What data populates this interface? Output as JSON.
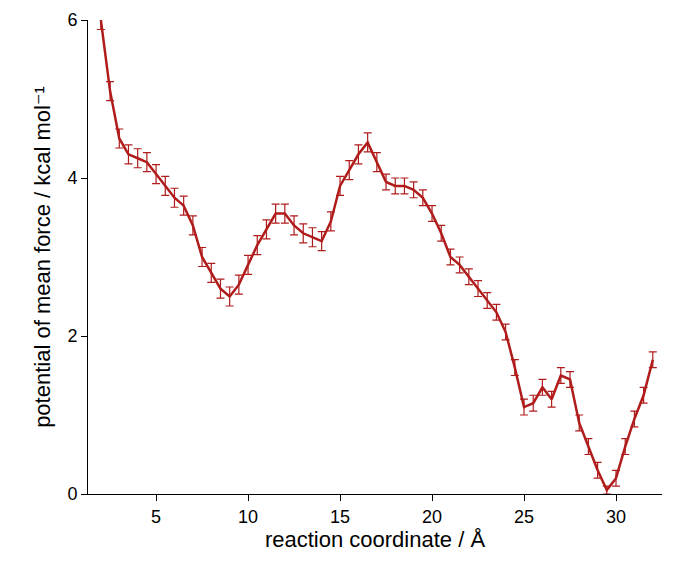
{
  "chart_data": {
    "type": "line",
    "x_label": "reaction coordinate / Å",
    "y_label": "potential of mean force / kcal mol⁻¹",
    "color": "#b01c1c",
    "grid": false,
    "xlim": [
      1.3,
      32.5
    ],
    "xticks": [
      5,
      10,
      15,
      20,
      25,
      30
    ],
    "ylim": [
      0,
      6
    ],
    "yticks": [
      0,
      2,
      4,
      6
    ],
    "x": [
      2.0,
      2.5,
      3.0,
      3.5,
      4.0,
      4.5,
      5.0,
      5.5,
      6.0,
      6.5,
      7.0,
      7.5,
      8.0,
      8.5,
      9.0,
      9.5,
      10.0,
      10.5,
      11.0,
      11.5,
      12.0,
      12.5,
      13.0,
      13.5,
      14.0,
      14.5,
      15.0,
      15.5,
      16.0,
      16.5,
      17.0,
      17.5,
      18.0,
      18.5,
      19.0,
      19.5,
      20.0,
      20.5,
      21.0,
      21.5,
      22.0,
      22.5,
      23.0,
      23.5,
      24.0,
      24.5,
      25.0,
      25.5,
      26.0,
      26.5,
      27.0,
      27.5,
      28.0,
      28.5,
      29.0,
      29.5,
      30.0,
      30.5,
      31.0,
      31.5,
      32.0
    ],
    "values": [
      6.0,
      5.1,
      4.5,
      4.3,
      4.25,
      4.2,
      4.05,
      3.9,
      3.75,
      3.65,
      3.4,
      3.0,
      2.8,
      2.6,
      2.5,
      2.65,
      2.9,
      3.15,
      3.35,
      3.55,
      3.55,
      3.4,
      3.3,
      3.25,
      3.2,
      3.45,
      3.9,
      4.1,
      4.3,
      4.45,
      4.2,
      3.95,
      3.9,
      3.9,
      3.85,
      3.75,
      3.55,
      3.3,
      3.0,
      2.9,
      2.75,
      2.6,
      2.45,
      2.3,
      2.05,
      1.6,
      1.1,
      1.15,
      1.35,
      1.2,
      1.5,
      1.45,
      0.9,
      0.6,
      0.3,
      0.05,
      0.2,
      0.6,
      0.95,
      1.25,
      1.7
    ],
    "errors": [
      0.12,
      0.12,
      0.12,
      0.12,
      0.12,
      0.12,
      0.12,
      0.12,
      0.12,
      0.12,
      0.12,
      0.12,
      0.12,
      0.12,
      0.12,
      0.12,
      0.12,
      0.12,
      0.12,
      0.12,
      0.12,
      0.12,
      0.12,
      0.12,
      0.12,
      0.12,
      0.12,
      0.12,
      0.12,
      0.12,
      0.12,
      0.1,
      0.1,
      0.1,
      0.1,
      0.1,
      0.1,
      0.1,
      0.1,
      0.1,
      0.1,
      0.1,
      0.1,
      0.1,
      0.1,
      0.1,
      0.1,
      0.1,
      0.1,
      0.1,
      0.1,
      0.1,
      0.1,
      0.1,
      0.1,
      0.05,
      0.1,
      0.1,
      0.1,
      0.1,
      0.1
    ]
  }
}
